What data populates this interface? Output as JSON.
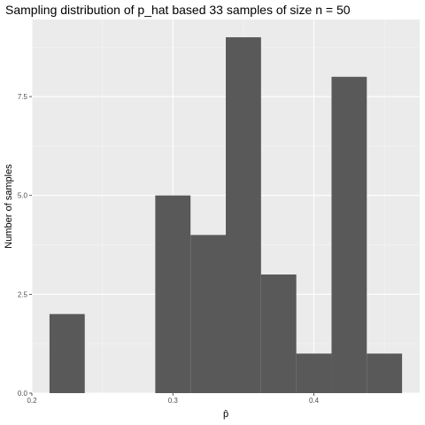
{
  "chart_data": {
    "type": "bar",
    "title": "Sampling distribution of p_hat based 33 samples of size n = 50",
    "xlabel": "p̂",
    "ylabel": "Number of samples",
    "xlim": [
      0.2,
      0.475
    ],
    "ylim": [
      0,
      9.45
    ],
    "x_ticks": [
      {
        "value": 0.2,
        "label": "0.2"
      },
      {
        "value": 0.3,
        "label": "0.3"
      },
      {
        "value": 0.4,
        "label": "0.4"
      }
    ],
    "y_ticks": [
      {
        "value": 0,
        "label": "0.0"
      },
      {
        "value": 2.5,
        "label": "2.5"
      },
      {
        "value": 5,
        "label": "5.0"
      },
      {
        "value": 7.5,
        "label": "7.5"
      }
    ],
    "bins": [
      {
        "x0": 0.2125,
        "x1": 0.2375,
        "count": 2
      },
      {
        "x0": 0.2375,
        "x1": 0.2625,
        "count": 0
      },
      {
        "x0": 0.2625,
        "x1": 0.2875,
        "count": 0
      },
      {
        "x0": 0.2875,
        "x1": 0.3125,
        "count": 5
      },
      {
        "x0": 0.3125,
        "x1": 0.3375,
        "count": 4
      },
      {
        "x0": 0.3375,
        "x1": 0.3625,
        "count": 9
      },
      {
        "x0": 0.3625,
        "x1": 0.3875,
        "count": 3
      },
      {
        "x0": 0.3875,
        "x1": 0.4125,
        "count": 1
      },
      {
        "x0": 0.4125,
        "x1": 0.4375,
        "count": 8
      },
      {
        "x0": 0.4375,
        "x1": 0.4625,
        "count": 1
      }
    ],
    "grid": true,
    "colors": {
      "panel": "#ebebeb",
      "grid_major": "#ffffff",
      "grid_minor": "#f5f5f5",
      "bar": "#595959",
      "tick": "#333333"
    }
  }
}
